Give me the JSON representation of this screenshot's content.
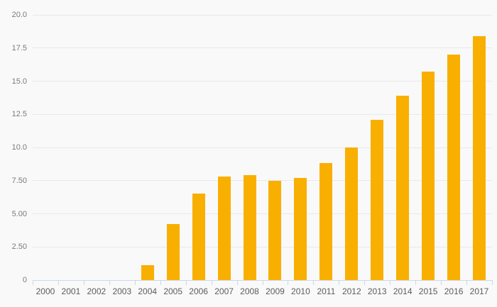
{
  "chart_data": {
    "type": "bar",
    "title": "",
    "xlabel": "",
    "ylabel": "",
    "categories": [
      "2000",
      "2001",
      "2002",
      "2003",
      "2004",
      "2005",
      "2006",
      "2007",
      "2008",
      "2009",
      "2010",
      "2011",
      "2012",
      "2013",
      "2014",
      "2015",
      "2016",
      "2017"
    ],
    "values": [
      0,
      0,
      0,
      0,
      1.1,
      4.2,
      6.5,
      7.8,
      7.9,
      7.5,
      7.7,
      8.8,
      10.0,
      12.1,
      13.9,
      15.7,
      17.0,
      18.4
    ],
    "ylim": [
      0,
      20
    ],
    "grid": "horizontal",
    "legend": "none",
    "y_ticks": [
      {
        "label": "20.0",
        "value": 20.0
      },
      {
        "label": "17.5",
        "value": 17.5
      },
      {
        "label": "15.0",
        "value": 15.0
      },
      {
        "label": "12.5",
        "value": 12.5
      },
      {
        "label": "10.0",
        "value": 10.0
      },
      {
        "label": "7.50",
        "value": 7.5
      },
      {
        "label": "5.00",
        "value": 5.0
      },
      {
        "label": "2.50",
        "value": 2.5
      },
      {
        "label": "0",
        "value": 0.0
      }
    ]
  },
  "colors": {
    "background": "#f9f9f9",
    "bar": "#f9af00",
    "axis_line": "#ccd6eb",
    "gridline": "#e9e9e9",
    "y_label_text": "#7a7a7a",
    "x_label_text": "#5c5c5c"
  }
}
